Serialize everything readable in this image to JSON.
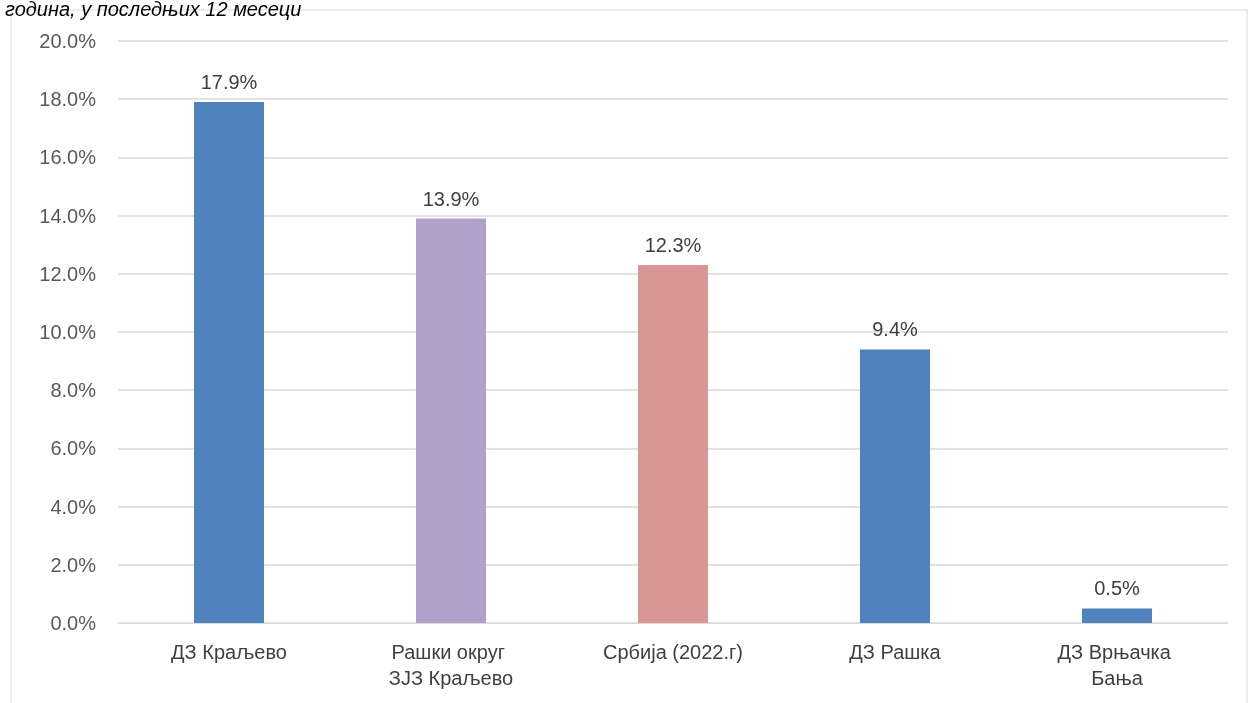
{
  "chart_data": {
    "type": "bar",
    "title": "година, у последњих 12 месеци",
    "categories": [
      "ДЗ Краљево",
      "Рашки округ ЗЈЗ Краљево",
      "Србија (2022.г)",
      "ДЗ Рашка",
      "ДЗ Врњачка Бања"
    ],
    "values": [
      17.9,
      13.9,
      12.3,
      9.4,
      0.5
    ],
    "colors": [
      "#4f81bd",
      "#b1a0c7",
      "#d99694",
      "#4f81bd",
      "#4f81bd"
    ],
    "value_labels": [
      "17.9%",
      "13.9%",
      "12.3%",
      "9.4%",
      "0.5%"
    ],
    "ylim": [
      0,
      20
    ],
    "yticks": [
      {
        "value": 0,
        "label": "0.0%"
      },
      {
        "value": 2,
        "label": "2.0%"
      },
      {
        "value": 4,
        "label": "4.0%"
      },
      {
        "value": 6,
        "label": "6.0%"
      },
      {
        "value": 8,
        "label": "8.0%"
      },
      {
        "value": 10,
        "label": "10.0%"
      },
      {
        "value": 12,
        "label": "12.0%"
      },
      {
        "value": 14,
        "label": "14.0%"
      },
      {
        "value": 16,
        "label": "16.0%"
      },
      {
        "value": 18,
        "label": "18.0%"
      },
      {
        "value": 20,
        "label": "20.0%"
      }
    ],
    "grid": "y"
  }
}
